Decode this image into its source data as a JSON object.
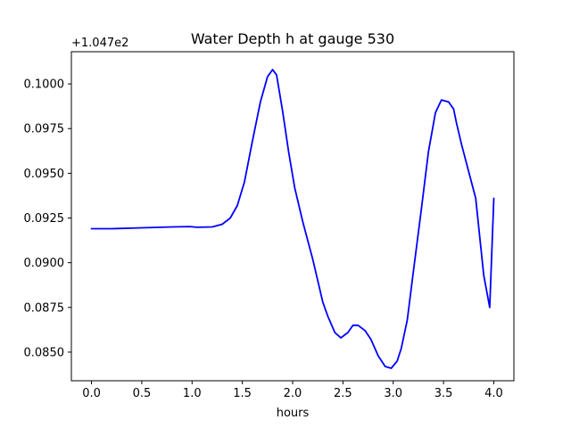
{
  "chart_data": {
    "type": "line",
    "title": "Water Depth h at gauge 530",
    "xlabel": "hours",
    "ylabel": "",
    "y_offset_label": "+1.047e2",
    "xlim": [
      -0.2,
      4.2
    ],
    "ylim": [
      0.0834,
      0.1018
    ],
    "x_ticks": [
      0.0,
      0.5,
      1.0,
      1.5,
      2.0,
      2.5,
      3.0,
      3.5,
      4.0
    ],
    "x_tick_labels": [
      "0.0",
      "0.5",
      "1.0",
      "1.5",
      "2.0",
      "2.5",
      "3.0",
      "3.5",
      "4.0"
    ],
    "y_ticks": [
      0.085,
      0.0875,
      0.09,
      0.0925,
      0.095,
      0.0975,
      0.1
    ],
    "y_tick_labels": [
      "0.0850",
      "0.0875",
      "0.0900",
      "0.0925",
      "0.0950",
      "0.0975",
      "0.1000"
    ],
    "grid": false,
    "series": [
      {
        "color": "#0000ff",
        "x": [
          0.0,
          0.2,
          0.5,
          0.8,
          0.98,
          1.05,
          1.2,
          1.3,
          1.38,
          1.45,
          1.52,
          1.6,
          1.68,
          1.75,
          1.8,
          1.84,
          1.9,
          1.96,
          2.02,
          2.1,
          2.2,
          2.3,
          2.35,
          2.42,
          2.48,
          2.55,
          2.6,
          2.65,
          2.72,
          2.78,
          2.85,
          2.92,
          2.98,
          3.04,
          3.08,
          3.14,
          3.2,
          3.28,
          3.35,
          3.42,
          3.48,
          3.55,
          3.6,
          3.63,
          3.68,
          3.75,
          3.82,
          3.9,
          3.96,
          4.0
        ],
        "y": [
          0.0919,
          0.0919,
          0.09195,
          0.092,
          0.09202,
          0.09198,
          0.092,
          0.09215,
          0.0925,
          0.0932,
          0.0945,
          0.0968,
          0.099,
          0.1004,
          0.1008,
          0.1005,
          0.0985,
          0.0962,
          0.0942,
          0.0923,
          0.0902,
          0.0878,
          0.087,
          0.0861,
          0.0858,
          0.0861,
          0.0865,
          0.0865,
          0.0862,
          0.0857,
          0.0848,
          0.0842,
          0.0841,
          0.0845,
          0.0852,
          0.0868,
          0.0895,
          0.093,
          0.0962,
          0.0984,
          0.0991,
          0.099,
          0.0986,
          0.0978,
          0.0966,
          0.0951,
          0.0936,
          0.0893,
          0.0875,
          0.0936
        ]
      }
    ]
  }
}
